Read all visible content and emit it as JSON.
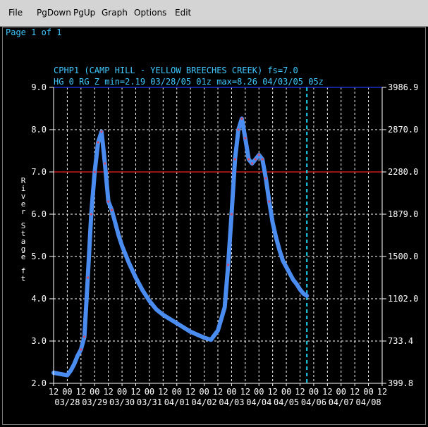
{
  "menu": {
    "file": "File",
    "pgdown": "PgDown",
    "pgup": "PgUp",
    "graph": "Graph",
    "options": "Options",
    "edit": "Edit"
  },
  "page_info": "Page 1 of 1",
  "colors": {
    "background": "#000000",
    "text": "#40c8ff",
    "axis_labels": "#ffffff",
    "grid": "#ffffff",
    "top_line": "#1c2cc8",
    "flood_line": "#c81c1c",
    "series": "#4a8cf0",
    "points": "#d04a6a",
    "now_line": "#20d8f8"
  },
  "chart_data": {
    "type": "line",
    "title": "CPHP1 (CAMP HILL - YELLOW BREECHES CREEK) fs=7.0",
    "subtitle": "HG 0 RG Z min=2.19 03/28/05 01z max=8.26 04/03/05 05z",
    "ylabel": "River Stage ft",
    "ylim": [
      2.0,
      9.0
    ],
    "y_ticks": [
      "2.0",
      "3.0",
      "4.0",
      "5.0",
      "6.0",
      "7.0",
      "8.0",
      "9.0"
    ],
    "y2_ticks": [
      "399.8",
      "733.4",
      "1102.0",
      "1500.0",
      "1879.0",
      "2280.0",
      "2870.0",
      "3986.9"
    ],
    "x_hours_range": [
      -12,
      276
    ],
    "x_tick_labels": [
      "12",
      "00",
      "12",
      "00",
      "12",
      "00",
      "12",
      "00",
      "12",
      "00",
      "12",
      "00",
      "12",
      "00",
      "12",
      "00",
      "12",
      "00",
      "12",
      "00",
      "12",
      "00",
      "12",
      "00",
      "12"
    ],
    "date_labels": [
      "03/28",
      "03/29",
      "03/30",
      "03/31",
      "04/01",
      "04/02",
      "04/03",
      "04/04",
      "04/05",
      "04/06",
      "04/07",
      "04/08"
    ],
    "flood_stage": 7.0,
    "now_hours": 210,
    "grid": true,
    "series": [
      {
        "x": [
          -12,
          -6,
          0,
          3,
          6,
          9,
          12,
          15,
          18,
          21,
          24,
          27,
          30,
          33,
          36,
          39,
          42,
          45,
          48,
          54,
          60,
          66,
          72,
          78,
          84,
          90,
          96,
          102,
          108,
          114,
          120,
          126,
          132,
          138,
          141,
          144,
          147,
          150,
          153,
          156,
          159,
          162,
          165,
          168,
          171,
          174,
          177,
          180,
          183,
          186,
          189,
          192,
          195,
          198,
          201,
          204,
          207,
          210
        ],
        "values": [
          2.25,
          2.22,
          2.19,
          2.3,
          2.45,
          2.65,
          2.8,
          3.1,
          4.5,
          6.0,
          7.0,
          7.7,
          7.95,
          7.2,
          6.3,
          6.1,
          5.8,
          5.5,
          5.25,
          4.85,
          4.5,
          4.2,
          3.95,
          3.75,
          3.62,
          3.52,
          3.42,
          3.32,
          3.22,
          3.15,
          3.08,
          3.03,
          3.25,
          3.8,
          4.8,
          6.0,
          7.3,
          8.0,
          8.26,
          7.8,
          7.3,
          7.2,
          7.3,
          7.4,
          7.3,
          6.85,
          6.3,
          5.8,
          5.45,
          5.15,
          4.9,
          4.75,
          4.6,
          4.45,
          4.35,
          4.22,
          4.12,
          4.07
        ]
      }
    ]
  }
}
